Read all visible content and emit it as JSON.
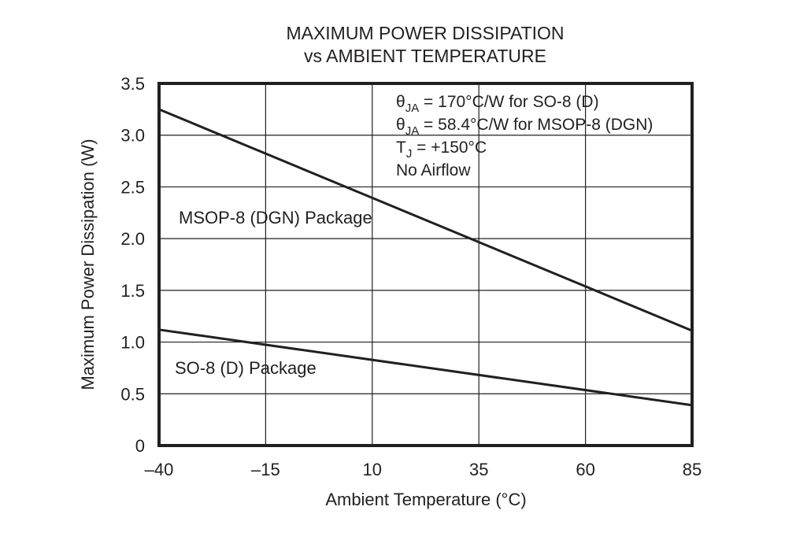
{
  "chart_data": {
    "type": "line",
    "title_line1": "MAXIMUM POWER DISSIPATION",
    "title_line2": "vs AMBIENT TEMPERATURE",
    "xlabel": "Ambient Temperature (°C)",
    "ylabel": "Maximum Power Dissipation (W)",
    "xlim": [
      -40,
      85
    ],
    "ylim": [
      0,
      3.5
    ],
    "x_ticks": [
      -40,
      -15,
      10,
      35,
      60,
      85
    ],
    "x_tick_labels": [
      "–40",
      "–15",
      "10",
      "35",
      "60",
      "85"
    ],
    "y_ticks": [
      0,
      0.5,
      1.0,
      1.5,
      2.0,
      2.5,
      3.0,
      3.5
    ],
    "y_tick_labels": [
      "0",
      "0.5",
      "1.0",
      "1.5",
      "2.0",
      "2.5",
      "3.0",
      "3.5"
    ],
    "grid": true,
    "series": [
      {
        "name": "MSOP-8 (DGN) Package",
        "x": [
          -40,
          85
        ],
        "y": [
          3.25,
          1.11
        ]
      },
      {
        "name": "SO-8 (D) Package",
        "x": [
          -40,
          85
        ],
        "y": [
          1.12,
          0.39
        ]
      }
    ],
    "annotations": [
      {
        "symbol": "θ",
        "sub": "JA",
        "text": " = 170°C/W for SO-8 (D)"
      },
      {
        "symbol": "θ",
        "sub": "JA",
        "text": " = 58.4°C/W for MSOP-8 (DGN)"
      },
      {
        "symbol": "T",
        "sub": "J",
        "text": " = +150°C"
      },
      {
        "symbol": "",
        "sub": "",
        "text": "No Airflow"
      }
    ],
    "colors": {
      "ink": "#231f20",
      "background": "#ffffff"
    }
  }
}
